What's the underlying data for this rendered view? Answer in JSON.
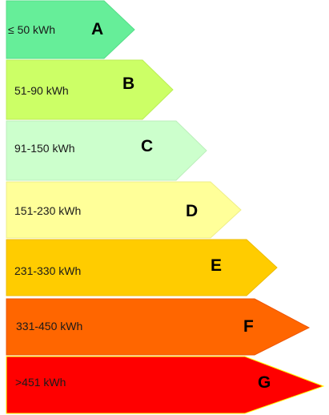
{
  "bands": [
    {
      "letter": "A",
      "range": "≤ 50 kWh",
      "color": "#66ee99"
    },
    {
      "letter": "B",
      "range": "51-90 kWh",
      "color": "#ccff66"
    },
    {
      "letter": "C",
      "range": "91-150 kWh",
      "color": "#ccffcc"
    },
    {
      "letter": "D",
      "range": "151-230 kWh",
      "color": "#ffff99"
    },
    {
      "letter": "E",
      "range": "231-330 kWh",
      "color": "#ffcc00"
    },
    {
      "letter": "F",
      "range": "331-450 kWh",
      "color": "#ff6600"
    },
    {
      "letter": "G",
      "range": ">451 kWh",
      "color": "#ff0000"
    }
  ],
  "stroke_colors": {
    "A": "#55dd88",
    "B": "#bbee55",
    "C": "#bbeebb",
    "D": "#eeee88",
    "E": "#eebb00",
    "F": "#ee5500",
    "G": "#ffff00"
  }
}
